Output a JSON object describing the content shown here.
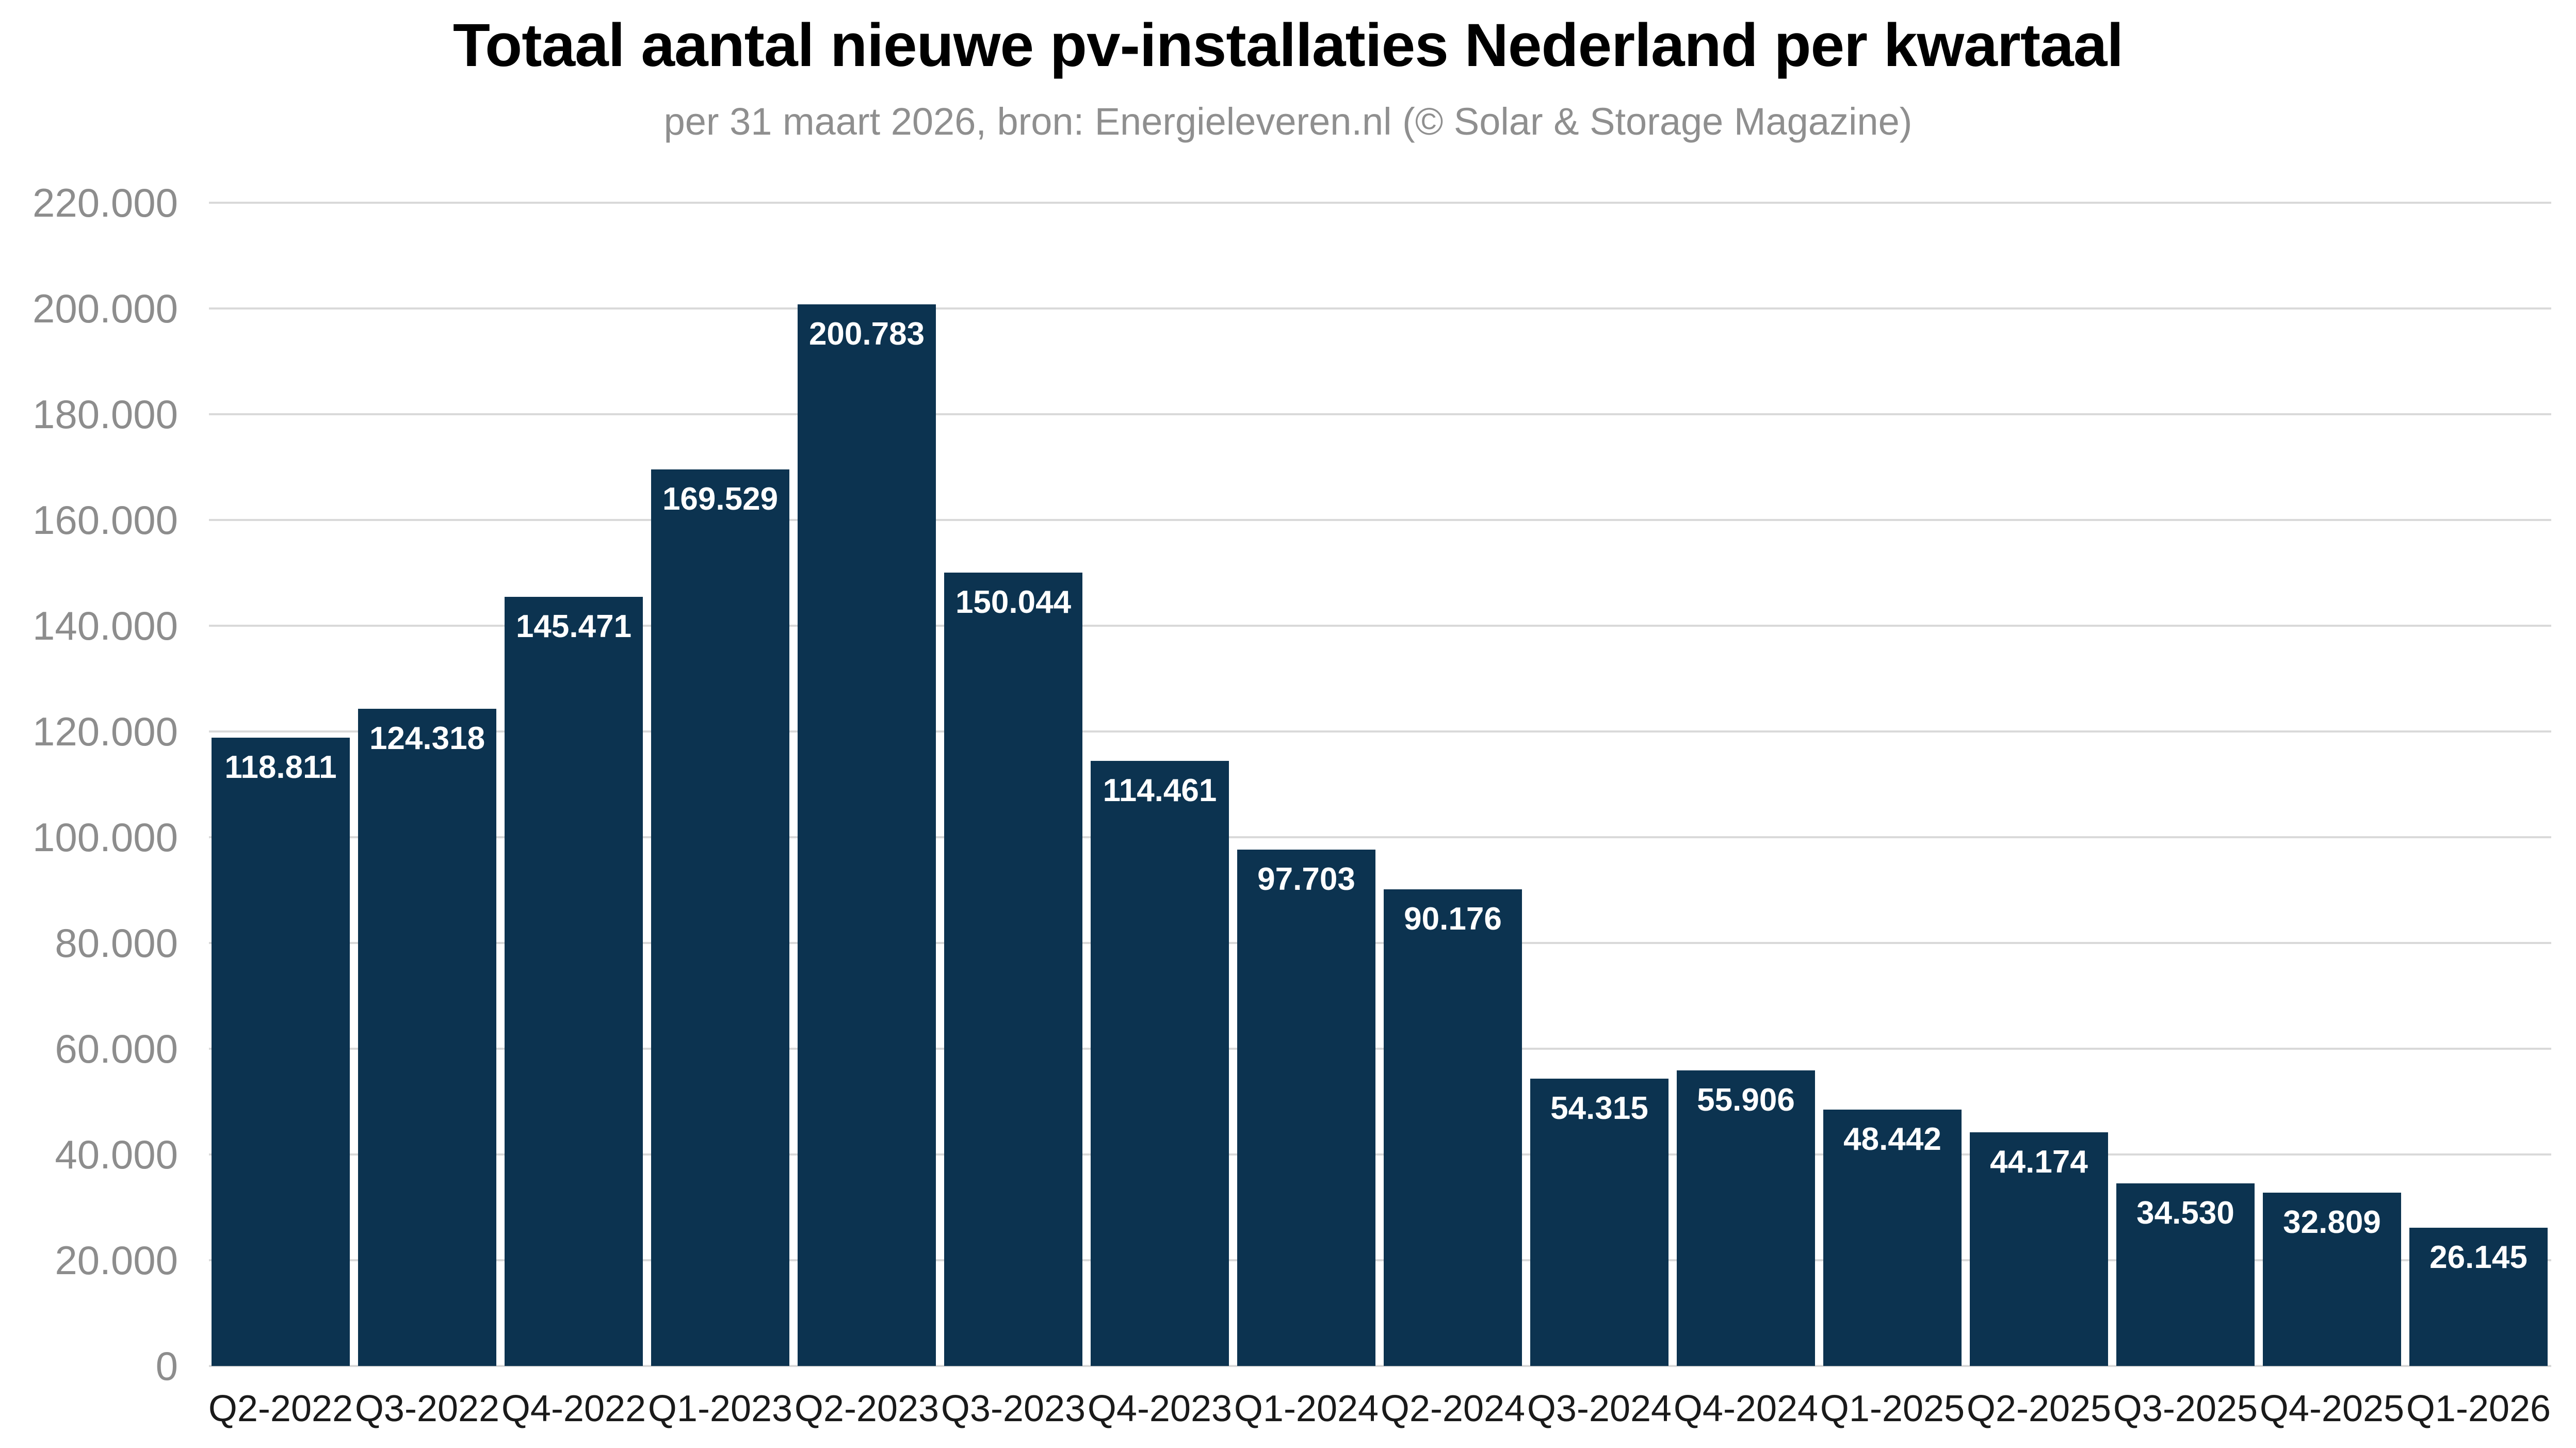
{
  "header": {
    "title": "Totaal aantal nieuwe pv-installaties Nederland per kwartaal",
    "subtitle": "per 31 maart 2026, bron: Energieleveren.nl (© Solar & Storage Magazine)"
  },
  "chart_data": {
    "type": "bar",
    "title": "Totaal aantal nieuwe pv-installaties Nederland per kwartaal",
    "subtitle": "per 31 maart 2026, bron: Energieleveren.nl (© Solar & Storage Magazine)",
    "categories": [
      "Q2-2022",
      "Q3-2022",
      "Q4-2022",
      "Q1-2023",
      "Q2-2023",
      "Q3-2023",
      "Q4-2023",
      "Q1-2024",
      "Q2-2024",
      "Q3-2024",
      "Q4-2024",
      "Q1-2025",
      "Q2-2025",
      "Q3-2025",
      "Q4-2025",
      "Q1-2026"
    ],
    "values": [
      118811,
      124318,
      145471,
      169529,
      200783,
      150044,
      114461,
      97703,
      90176,
      54315,
      55906,
      48442,
      44174,
      34530,
      32809,
      26145
    ],
    "value_labels": [
      "118.811",
      "124.318",
      "145.471",
      "169.529",
      "200.783",
      "150.044",
      "114.461",
      "97.703",
      "90.176",
      "54.315",
      "55.906",
      "48.442",
      "44.174",
      "34.530",
      "32.809",
      "26.145"
    ],
    "xlabel": "",
    "ylabel": "",
    "ylim": [
      0,
      220000
    ],
    "ytick_step": 20000,
    "ytick_labels": [
      "0",
      "20.000",
      "40.000",
      "60.000",
      "80.000",
      "100.000",
      "120.000",
      "140.000",
      "160.000",
      "180.000",
      "200.000",
      "220.000"
    ],
    "grid": true,
    "legend": false,
    "colors": {
      "bar": "#0c3350",
      "grid": "#d9d9d9",
      "bar_label": "#ffffff",
      "ytick": "#8d8d8d",
      "xtick": "#1a1a1a",
      "title": "#000000",
      "subtitle": "#8f8f8f",
      "background": "#ffffff"
    }
  }
}
